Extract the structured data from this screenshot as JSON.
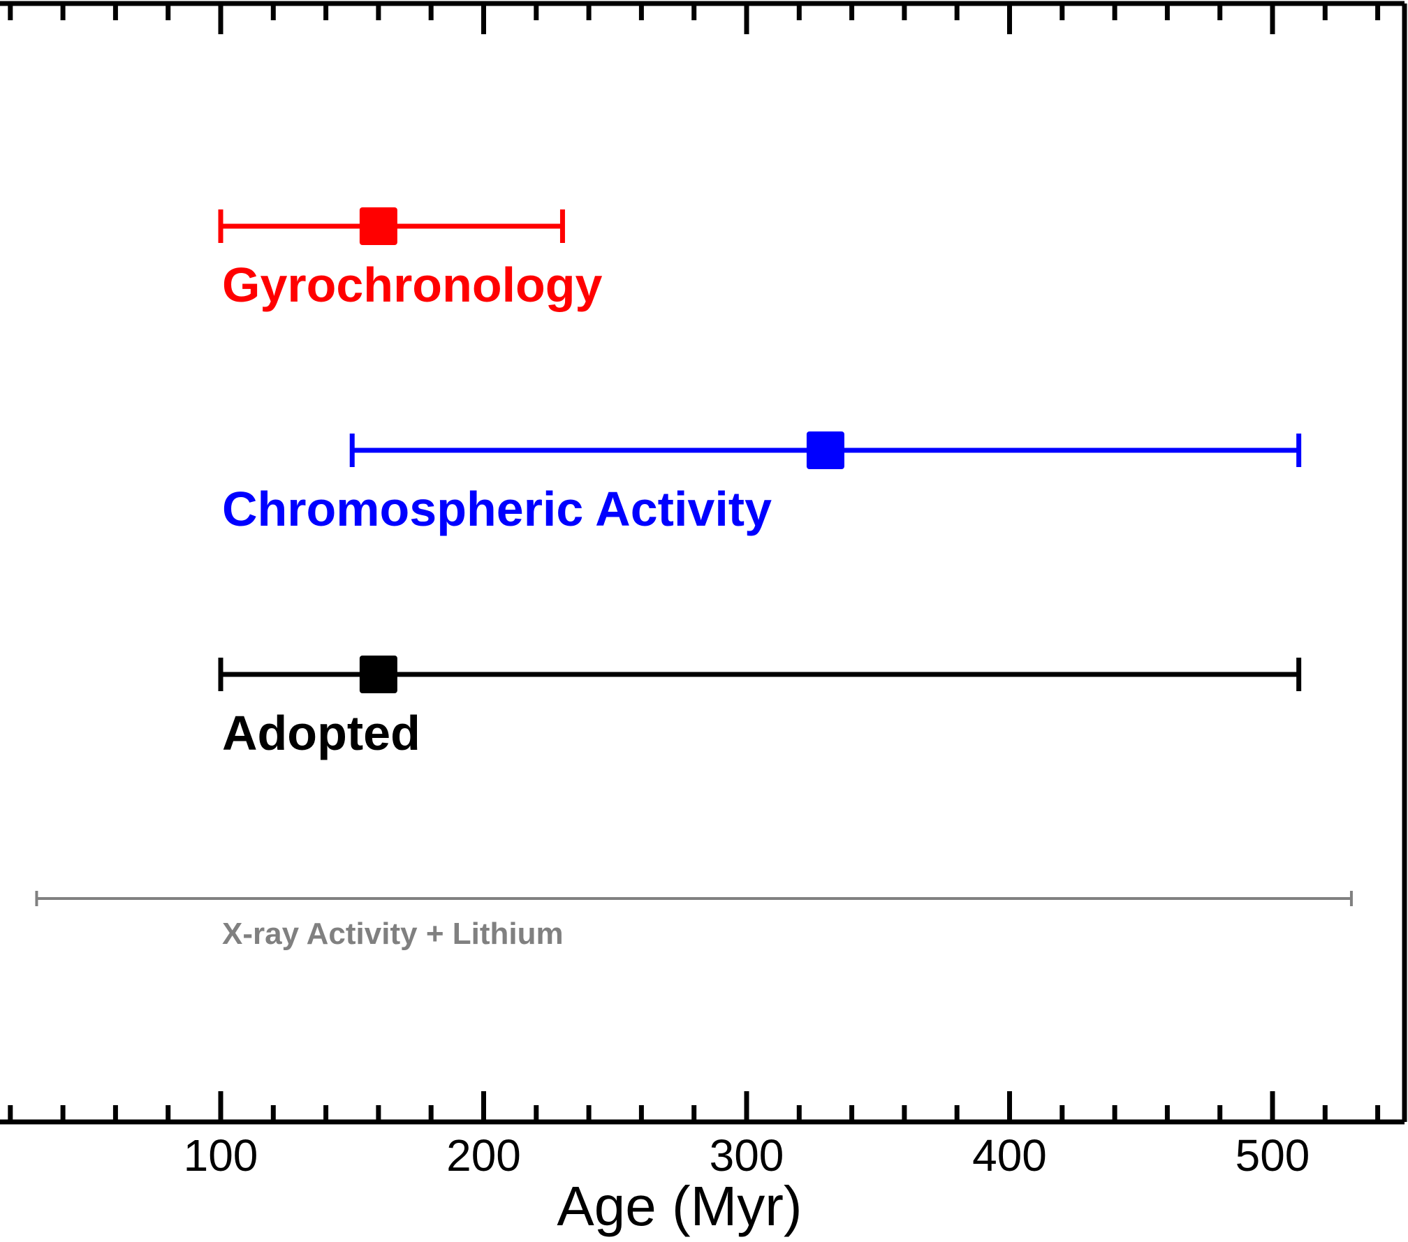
{
  "chart_data": {
    "type": "errorbar",
    "xlabel": "Age (Myr)",
    "ylabel": "",
    "xlim": [
      17,
      550
    ],
    "x_major_ticks": [
      100,
      200,
      300,
      400,
      500
    ],
    "x_minor_step": 20,
    "grid": false,
    "legend": "none",
    "series": [
      {
        "name": "Gyrochronology",
        "value": 160,
        "lower": 100,
        "upper": 230,
        "color": "#ff0000",
        "marker": "square"
      },
      {
        "name": "Chromospheric Activity",
        "value": 330,
        "lower": 150,
        "upper": 510,
        "color": "#0000ff",
        "marker": "square"
      },
      {
        "name": "Adopted",
        "value": 160,
        "lower": 100,
        "upper": 510,
        "color": "#000000",
        "marker": "square"
      },
      {
        "name": "X-ray Activity + Lithium",
        "value": null,
        "lower": 30,
        "upper": 530,
        "color": "#808080",
        "marker": "none"
      }
    ]
  }
}
